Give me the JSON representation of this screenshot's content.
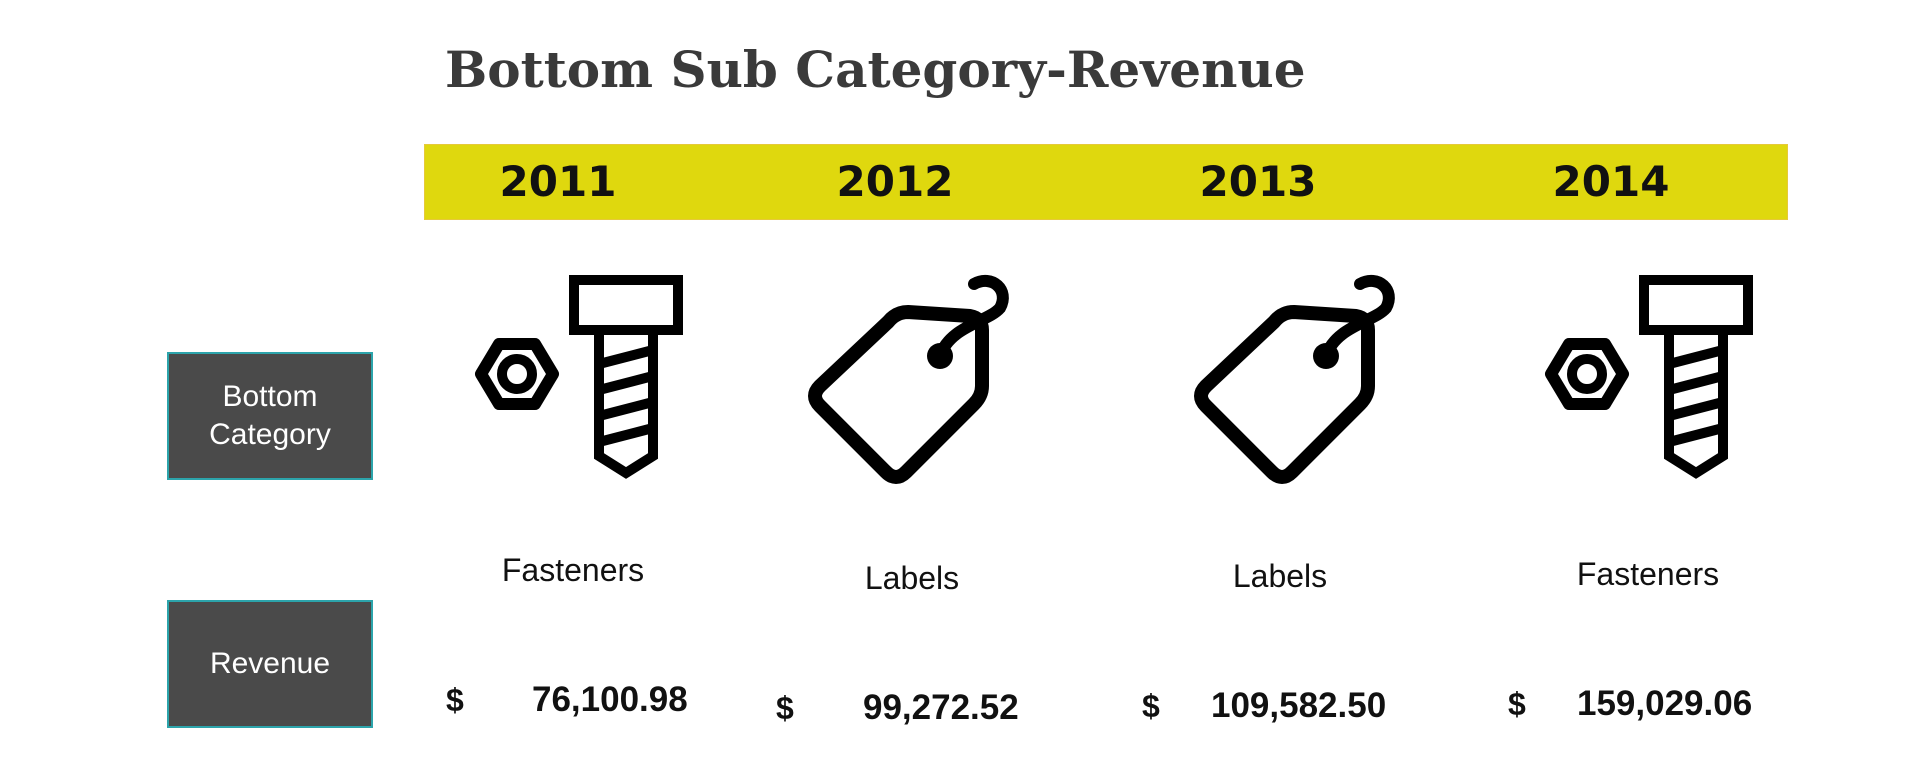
{
  "title": "Bottom Sub Category-Revenue",
  "colors": {
    "year_band": "#dfd80e",
    "row_label_bg": "#4a4a4a",
    "row_label_border": "#2ca4ab",
    "title": "#3a3a3a"
  },
  "row_labels": {
    "category": [
      "Bottom",
      "Category"
    ],
    "revenue": "Revenue"
  },
  "columns": [
    {
      "year": "2011",
      "icon": "bolt-nut-icon",
      "category": "Fasteners",
      "currency": "$",
      "revenue": "76,100.98"
    },
    {
      "year": "2012",
      "icon": "price-tag-icon",
      "category": "Labels",
      "currency": "$",
      "revenue": "99,272.52"
    },
    {
      "year": "2013",
      "icon": "price-tag-icon",
      "category": "Labels",
      "currency": "$",
      "revenue": "109,582.50"
    },
    {
      "year": "2014",
      "icon": "bolt-nut-icon",
      "category": "Fasteners",
      "currency": "$",
      "revenue": "159,029.06"
    }
  ]
}
